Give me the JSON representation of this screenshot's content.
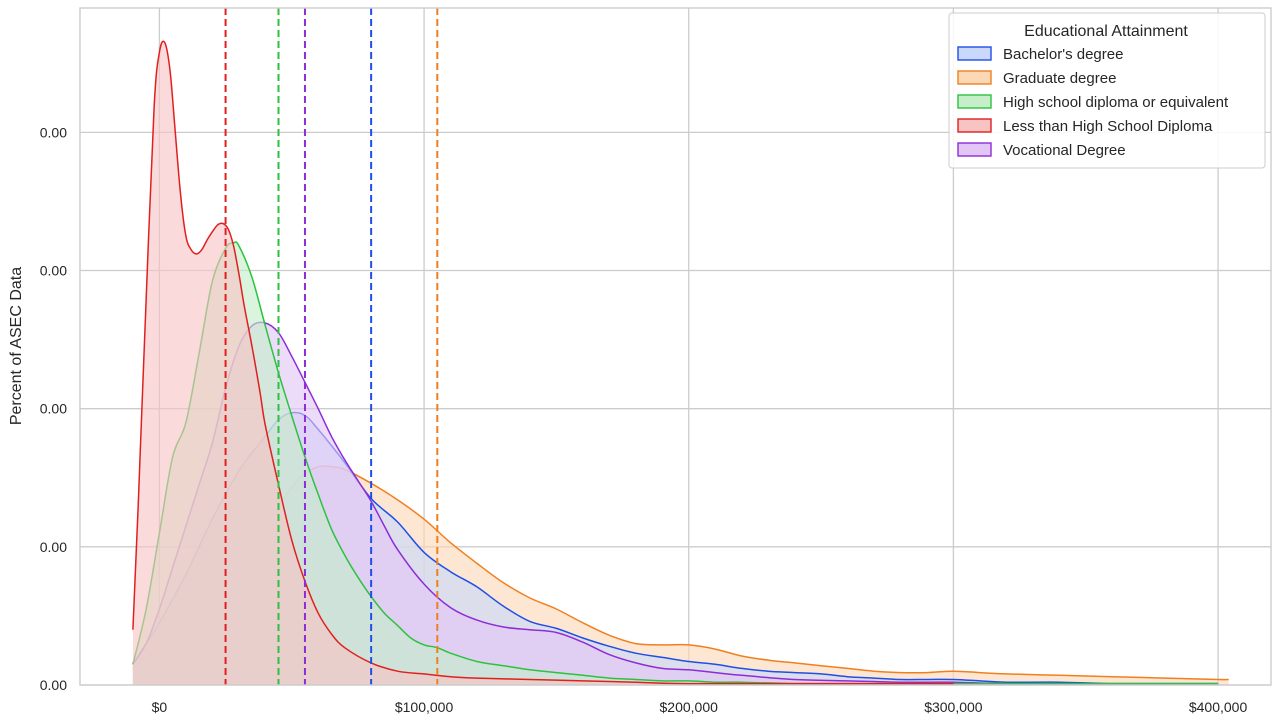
{
  "chart_data": {
    "type": "area",
    "title": "",
    "xlabel": "",
    "ylabel": "Percent of ASEC Data",
    "xlim": [
      -30000,
      420000
    ],
    "ylim": [
      0,
      4.9e-05
    ],
    "x_ticks": [
      0,
      100000,
      200000,
      300000,
      400000
    ],
    "x_tick_labels": [
      "$0",
      "$100,000",
      "$200,000",
      "$300,000",
      "$400,000"
    ],
    "y_ticks": [
      0,
      1e-05,
      2e-05,
      3e-05,
      4e-05
    ],
    "y_tick_labels": [
      "0.00",
      "0.00",
      "0.00",
      "0.00",
      "0.00"
    ],
    "grid": true,
    "legend": {
      "title": "Educational Attainment",
      "placement": "top-right"
    },
    "series": [
      {
        "name": "Bachelor's degree",
        "color": "#1f4ee8",
        "fill": "#c9d8fb",
        "median": 80000,
        "x": [
          -10000,
          -5000,
          0,
          10000,
          20000,
          30000,
          40000,
          45000,
          50000,
          55000,
          60000,
          70000,
          80000,
          90000,
          100000,
          110000,
          120000,
          130000,
          140000,
          150000,
          160000,
          170000,
          180000,
          190000,
          200000,
          210000,
          220000,
          230000,
          240000,
          250000,
          260000,
          270000,
          280000,
          290000,
          300000,
          310000,
          320000,
          340000,
          360000,
          380000,
          400000
        ],
        "y": [
          1.5e-06,
          3e-06,
          4.5e-06,
          8e-06,
          1.2e-05,
          1.55e-05,
          1.8e-05,
          1.92e-05,
          1.97e-05,
          1.95e-05,
          1.85e-05,
          1.61e-05,
          1.35e-05,
          1.18e-05,
          9.6e-06,
          8.2e-06,
          7.1e-06,
          5.7e-06,
          4.6e-06,
          4.1e-06,
          3.4e-06,
          2.8e-06,
          2.3e-06,
          2e-06,
          1.7e-06,
          1.5e-06,
          1.2e-06,
          1e-06,
          9e-07,
          8e-07,
          6e-07,
          5e-07,
          4e-07,
          4e-07,
          4e-07,
          3e-07,
          2e-07,
          2e-07,
          1e-07,
          1e-07,
          1e-07
        ]
      },
      {
        "name": "Graduate degree",
        "color": "#f17f20",
        "fill": "#fcd8b6",
        "median": 105000,
        "x": [
          -10000,
          0,
          10000,
          20000,
          30000,
          40000,
          50000,
          55000,
          60000,
          65000,
          70000,
          80000,
          90000,
          100000,
          110000,
          120000,
          130000,
          140000,
          150000,
          160000,
          170000,
          180000,
          190000,
          200000,
          210000,
          220000,
          230000,
          240000,
          250000,
          260000,
          270000,
          280000,
          290000,
          300000,
          310000,
          320000,
          340000,
          360000,
          380000,
          400000,
          404000
        ],
        "y": [
          1.2e-06,
          2.8e-06,
          4.5e-06,
          6.3e-06,
          8.7e-06,
          1.15e-05,
          1.43e-05,
          1.53e-05,
          1.58e-05,
          1.58e-05,
          1.56e-05,
          1.46e-05,
          1.34e-05,
          1.2e-05,
          1.03e-05,
          8.8e-06,
          7.4e-06,
          6.3e-06,
          5.5e-06,
          4.5e-06,
          3.6e-06,
          3e-06,
          2.9e-06,
          2.9e-06,
          2.6e-06,
          2.1e-06,
          1.8e-06,
          1.6e-06,
          1.4e-06,
          1.2e-06,
          1e-06,
          9e-07,
          9e-07,
          1e-06,
          9e-07,
          8e-07,
          7e-07,
          6e-07,
          5e-07,
          4e-07,
          4e-07
        ]
      },
      {
        "name": "High school diploma or equivalent",
        "color": "#2cc23f",
        "fill": "#c5eec9",
        "median": 45000,
        "x": [
          -10000,
          -5000,
          0,
          5000,
          10000,
          15000,
          20000,
          25000,
          28000,
          30000,
          35000,
          40000,
          45000,
          50000,
          55000,
          60000,
          65000,
          70000,
          75000,
          80000,
          85000,
          90000,
          95000,
          100000,
          105000,
          110000,
          120000,
          130000,
          140000,
          150000,
          160000,
          170000,
          180000,
          190000,
          200000,
          210000,
          220000,
          240000,
          260000,
          300000,
          400000
        ],
        "y": [
          1.5e-06,
          5.5e-06,
          1.1e-05,
          1.65e-05,
          1.9e-05,
          2.4e-05,
          2.92e-05,
          3.16e-05,
          3.2e-05,
          3.18e-05,
          2.95e-05,
          2.6e-05,
          2.26e-05,
          1.95e-05,
          1.65e-05,
          1.38e-05,
          1.13e-05,
          9.4e-06,
          7.8e-06,
          6.4e-06,
          5.2e-06,
          4.3e-06,
          3.4e-06,
          2.9e-06,
          2.7e-06,
          2.3e-06,
          1.7e-06,
          1.4e-06,
          1.1e-06,
          9e-07,
          7e-07,
          5e-07,
          4e-07,
          3e-07,
          3e-07,
          2e-07,
          2e-07,
          1e-07,
          1e-07,
          1e-07,
          1e-07
        ]
      },
      {
        "name": "Less than High School Diploma",
        "color": "#e0201f",
        "fill": "#f7c3c3",
        "median": 25000,
        "x": [
          -10000,
          -8000,
          -5000,
          -2000,
          0,
          2000,
          4000,
          6000,
          8000,
          10000,
          12000,
          14000,
          16000,
          18000,
          20000,
          22000,
          24000,
          26000,
          28000,
          30000,
          32000,
          35000,
          38000,
          40000,
          45000,
          50000,
          55000,
          60000,
          65000,
          70000,
          80000,
          90000,
          100000,
          110000,
          120000,
          140000,
          160000,
          180000,
          200000,
          250000,
          300000
        ],
        "y": [
          4e-06,
          1.3e-05,
          2.8e-05,
          4.18e-05,
          4.58e-05,
          4.65e-05,
          4.45e-05,
          4e-05,
          3.55e-05,
          3.25e-05,
          3.15e-05,
          3.12e-05,
          3.15e-05,
          3.22e-05,
          3.28e-05,
          3.33e-05,
          3.34e-05,
          3.3e-05,
          3.18e-05,
          2.98e-05,
          2.75e-05,
          2.45e-05,
          2.12e-05,
          1.88e-05,
          1.45e-05,
          1.05e-05,
          7.5e-06,
          5.2e-06,
          3.7e-06,
          2.7e-06,
          1.6e-06,
          1e-06,
          8e-07,
          6e-07,
          5e-07,
          4e-07,
          3e-07,
          2e-07,
          1e-07,
          1e-07,
          1e-07
        ]
      },
      {
        "name": "Vocational Degree",
        "color": "#8e2cd8",
        "fill": "#e2c6f5",
        "median": 55000,
        "x": [
          -10000,
          -5000,
          0,
          5000,
          10000,
          15000,
          20000,
          25000,
          30000,
          35000,
          40000,
          45000,
          50000,
          55000,
          60000,
          65000,
          70000,
          75000,
          80000,
          85000,
          90000,
          100000,
          110000,
          120000,
          130000,
          140000,
          150000,
          160000,
          170000,
          180000,
          190000,
          200000,
          210000,
          220000,
          240000,
          260000,
          280000,
          300000,
          320000,
          360000,
          400000
        ],
        "y": [
          1.5e-06,
          3e-06,
          5.5e-06,
          8.5e-06,
          1.15e-05,
          1.45e-05,
          1.75e-05,
          2.15e-05,
          2.45e-05,
          2.6e-05,
          2.62e-05,
          2.55e-05,
          2.38e-05,
          2.19e-05,
          2e-05,
          1.8e-05,
          1.63e-05,
          1.48e-05,
          1.33e-05,
          1.15e-05,
          9.8e-06,
          7.3e-06,
          5.6e-06,
          4.7e-06,
          4.2e-06,
          4e-06,
          3.8e-06,
          3.1e-06,
          2.2e-06,
          1.6e-06,
          1.2e-06,
          1.1e-06,
          9e-07,
          7e-07,
          4e-07,
          3e-07,
          2e-07,
          2e-07,
          1e-07,
          1e-07,
          1e-07
        ]
      }
    ]
  }
}
